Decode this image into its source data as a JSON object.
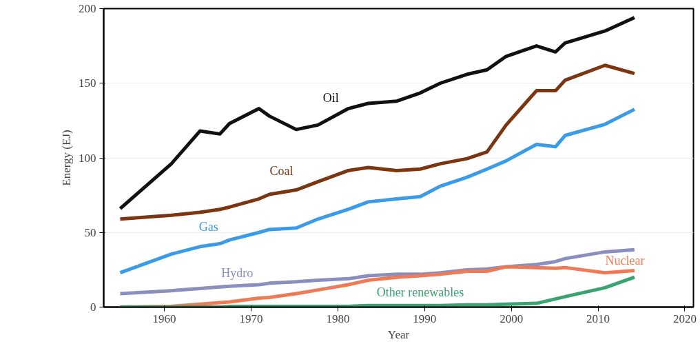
{
  "chart_data": {
    "type": "line",
    "xlabel": "Year",
    "ylabel": "Energy (EJ)",
    "x": [
      1954.9,
      1960.8,
      1964.1,
      1966.4,
      1967.5,
      1970.9,
      1972.1,
      1975.2,
      1977.7,
      1981.2,
      1983.5,
      1986.8,
      1989.5,
      1991.8,
      1994.9,
      1997.2,
      1999.4,
      2002.9,
      2005.1,
      2006.2,
      2010.8,
      2014.2
    ],
    "series": [
      {
        "name": "Oil",
        "color": "#111111",
        "values": [
          66,
          96,
          118,
          116,
          123,
          133,
          128,
          119,
          122,
          133,
          136.5,
          138,
          143.5,
          150,
          156,
          159,
          168,
          175,
          171,
          177,
          185,
          194
        ]
      },
      {
        "name": "Coal",
        "color": "#7b3510",
        "values": [
          59,
          61.5,
          63.5,
          65.5,
          67,
          72.5,
          75.5,
          78.5,
          84,
          91.5,
          93.5,
          91.5,
          92.5,
          96,
          99.5,
          104,
          122,
          145,
          145,
          152,
          162,
          156.5
        ]
      },
      {
        "name": "Gas",
        "color": "#3a9be8",
        "values": [
          23,
          35.5,
          40.5,
          42.5,
          45,
          50,
          52,
          53,
          59,
          65.5,
          70.5,
          72.5,
          74,
          81,
          87,
          92.5,
          98,
          109,
          107.5,
          115,
          122.5,
          132.5
        ]
      },
      {
        "name": "Hydro",
        "color": "#8a8fc0",
        "values": [
          9,
          11,
          12.5,
          13.5,
          14,
          15,
          16,
          17,
          18,
          19,
          21,
          22,
          22,
          23,
          25,
          25.5,
          27,
          28.5,
          30.5,
          32.5,
          37,
          38.5
        ]
      },
      {
        "name": "Nuclear",
        "color": "#ee7b55",
        "values": [
          0,
          0.5,
          2,
          3,
          3.5,
          6,
          6.5,
          9,
          11.5,
          15,
          18,
          20,
          21,
          22,
          24,
          24,
          27,
          26.5,
          26,
          26.5,
          23,
          24.5
        ]
      },
      {
        "name": "Other renewables",
        "color": "#3aa372",
        "values": [
          0,
          0,
          0,
          0,
          0.5,
          0.5,
          0.5,
          0.5,
          0.5,
          0.5,
          1,
          1,
          1,
          1,
          1.5,
          1.5,
          2,
          2.5,
          5.5,
          7,
          13,
          20
        ]
      }
    ],
    "xlim": [
      1953,
      2021
    ],
    "xticks": [
      1960,
      1970,
      1980,
      1990,
      2000,
      2010,
      2020
    ],
    "ylim": [
      0,
      200
    ],
    "yticks": [
      0,
      50,
      100,
      150,
      200
    ],
    "grid": "y",
    "marker": "none",
    "line_style": "solid"
  }
}
